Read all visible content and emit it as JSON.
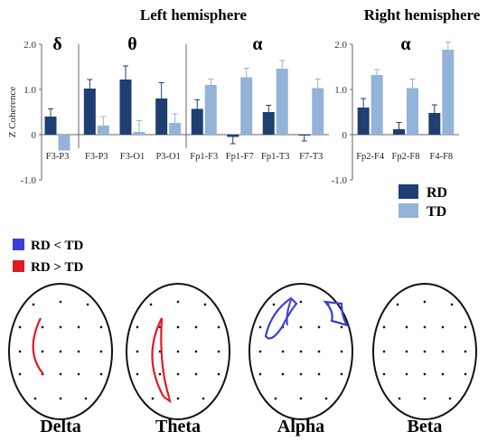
{
  "colors": {
    "rd": "#1f3f73",
    "td": "#93b3d9",
    "rd_lt_td": "#3b3fd6",
    "rd_gt_td": "#e01b24",
    "axis": "#666666"
  },
  "chart_data": [
    {
      "type": "bar",
      "title_left": "Left hemisphere",
      "title_right": "Right hemisphere",
      "ylabel": "Z Coherence",
      "ylim": [
        -1.0,
        2.0
      ],
      "yticks": [
        "2.0",
        "1.0",
        "0",
        "-1.0"
      ],
      "series_names": [
        "RD",
        "TD"
      ],
      "panels": [
        {
          "band": "δ",
          "hemisphere": "left",
          "categories": [
            "F3-P3"
          ],
          "rd": [
            0.4
          ],
          "rd_err": [
            0.17
          ],
          "td": [
            -0.35
          ],
          "td_err": [
            0.0
          ]
        },
        {
          "band": "θ",
          "hemisphere": "left",
          "categories": [
            "F3-P3",
            "F3-O1",
            "P3-O1"
          ],
          "rd": [
            1.02,
            1.22,
            0.8
          ],
          "rd_err": [
            0.2,
            0.3,
            0.35
          ],
          "td": [
            0.2,
            0.06,
            0.26
          ],
          "td_err": [
            0.2,
            0.25,
            0.2
          ]
        },
        {
          "band": "α",
          "hemisphere": "left",
          "categories": [
            "Fp1-F3",
            "Fp1-F7",
            "Fp1-T3",
            "F7-T3"
          ],
          "rd": [
            0.57,
            -0.05,
            0.5,
            -0.02
          ],
          "rd_err": [
            0.2,
            0.15,
            0.15,
            0.12
          ],
          "td": [
            1.1,
            1.27,
            1.46,
            1.03
          ],
          "td_err": [
            0.13,
            0.2,
            0.18,
            0.2
          ]
        },
        {
          "band": "α",
          "hemisphere": "right",
          "categories": [
            "Fp2-F4",
            "Fp2-F8",
            "F4-F8"
          ],
          "rd": [
            0.6,
            0.12,
            0.48
          ],
          "rd_err": [
            0.2,
            0.15,
            0.18
          ],
          "td": [
            1.32,
            1.03,
            1.88
          ],
          "td_err": [
            0.12,
            0.2,
            0.17
          ]
        }
      ]
    },
    {
      "type": "other",
      "legend": [
        {
          "label": "RD < TD",
          "color": "#3b3fd6"
        },
        {
          "label": "RD > TD",
          "color": "#e01b24"
        }
      ],
      "heads": [
        {
          "label": "Delta",
          "connections": "red arc left central"
        },
        {
          "label": "Theta",
          "connections": "red arcs left frontal-occipital"
        },
        {
          "label": "Alpha",
          "connections": "blue loops left frontal and right frontal"
        },
        {
          "label": "Beta",
          "connections": "none"
        }
      ]
    }
  ]
}
